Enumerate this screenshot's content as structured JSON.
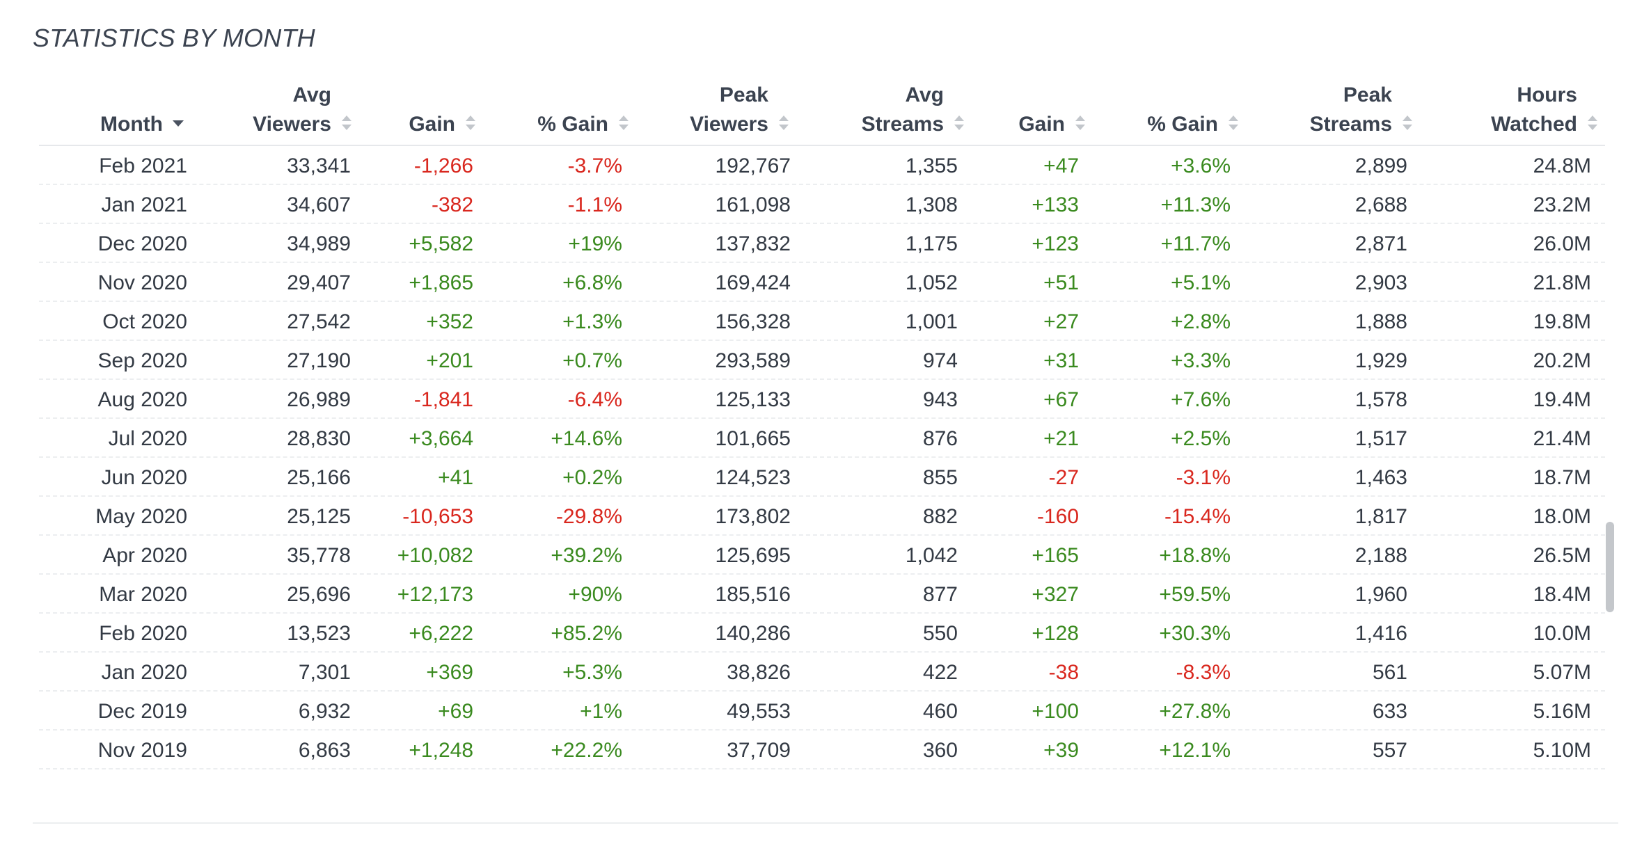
{
  "title": "STATISTICS BY MONTH",
  "columns": [
    {
      "key": "month",
      "line1": "",
      "line2": "Month",
      "sort": "desc"
    },
    {
      "key": "avg_viewers",
      "line1": "Avg",
      "line2": "Viewers",
      "sort": "none"
    },
    {
      "key": "gain",
      "line1": "",
      "line2": "Gain",
      "sort": "none"
    },
    {
      "key": "pct_gain",
      "line1": "",
      "line2": "% Gain",
      "sort": "none"
    },
    {
      "key": "peak_viewers",
      "line1": "Peak",
      "line2": "Viewers",
      "sort": "none"
    },
    {
      "key": "avg_streams",
      "line1": "Avg",
      "line2": "Streams",
      "sort": "none"
    },
    {
      "key": "streams_gain",
      "line1": "",
      "line2": "Gain",
      "sort": "none"
    },
    {
      "key": "streams_pct_gain",
      "line1": "",
      "line2": "% Gain",
      "sort": "none"
    },
    {
      "key": "peak_streams",
      "line1": "Peak",
      "line2": "Streams",
      "sort": "none"
    },
    {
      "key": "hours_watched",
      "line1": "Hours",
      "line2": "Watched",
      "sort": "none"
    }
  ],
  "rows": [
    [
      "Feb 2021",
      "33,341",
      "-1,266",
      "-3.7%",
      "192,767",
      "1,355",
      "+47",
      "+3.6%",
      "2,899",
      "24.8M"
    ],
    [
      "Jan 2021",
      "34,607",
      "-382",
      "-1.1%",
      "161,098",
      "1,308",
      "+133",
      "+11.3%",
      "2,688",
      "23.2M"
    ],
    [
      "Dec 2020",
      "34,989",
      "+5,582",
      "+19%",
      "137,832",
      "1,175",
      "+123",
      "+11.7%",
      "2,871",
      "26.0M"
    ],
    [
      "Nov 2020",
      "29,407",
      "+1,865",
      "+6.8%",
      "169,424",
      "1,052",
      "+51",
      "+5.1%",
      "2,903",
      "21.8M"
    ],
    [
      "Oct 2020",
      "27,542",
      "+352",
      "+1.3%",
      "156,328",
      "1,001",
      "+27",
      "+2.8%",
      "1,888",
      "19.8M"
    ],
    [
      "Sep 2020",
      "27,190",
      "+201",
      "+0.7%",
      "293,589",
      "974",
      "+31",
      "+3.3%",
      "1,929",
      "20.2M"
    ],
    [
      "Aug 2020",
      "26,989",
      "-1,841",
      "-6.4%",
      "125,133",
      "943",
      "+67",
      "+7.6%",
      "1,578",
      "19.4M"
    ],
    [
      "Jul 2020",
      "28,830",
      "+3,664",
      "+14.6%",
      "101,665",
      "876",
      "+21",
      "+2.5%",
      "1,517",
      "21.4M"
    ],
    [
      "Jun 2020",
      "25,166",
      "+41",
      "+0.2%",
      "124,523",
      "855",
      "-27",
      "-3.1%",
      "1,463",
      "18.7M"
    ],
    [
      "May 2020",
      "25,125",
      "-10,653",
      "-29.8%",
      "173,802",
      "882",
      "-160",
      "-15.4%",
      "1,817",
      "18.0M"
    ],
    [
      "Apr 2020",
      "35,778",
      "+10,082",
      "+39.2%",
      "125,695",
      "1,042",
      "+165",
      "+18.8%",
      "2,188",
      "26.5M"
    ],
    [
      "Mar 2020",
      "25,696",
      "+12,173",
      "+90%",
      "185,516",
      "877",
      "+327",
      "+59.5%",
      "1,960",
      "18.4M"
    ],
    [
      "Feb 2020",
      "13,523",
      "+6,222",
      "+85.2%",
      "140,286",
      "550",
      "+128",
      "+30.3%",
      "1,416",
      "10.0M"
    ],
    [
      "Jan 2020",
      "7,301",
      "+369",
      "+5.3%",
      "38,826",
      "422",
      "-38",
      "-8.3%",
      "561",
      "5.07M"
    ],
    [
      "Dec 2019",
      "6,932",
      "+69",
      "+1%",
      "49,553",
      "460",
      "+100",
      "+27.8%",
      "633",
      "5.16M"
    ],
    [
      "Nov 2019",
      "6,863",
      "+1,248",
      "+22.2%",
      "37,709",
      "360",
      "+39",
      "+12.1%",
      "557",
      "5.10M"
    ]
  ],
  "colors": {
    "positive": "#3a8a1f",
    "negative": "#d9271e",
    "sort_inactive": "#c2c6cb",
    "sort_active": "#4a5260"
  }
}
